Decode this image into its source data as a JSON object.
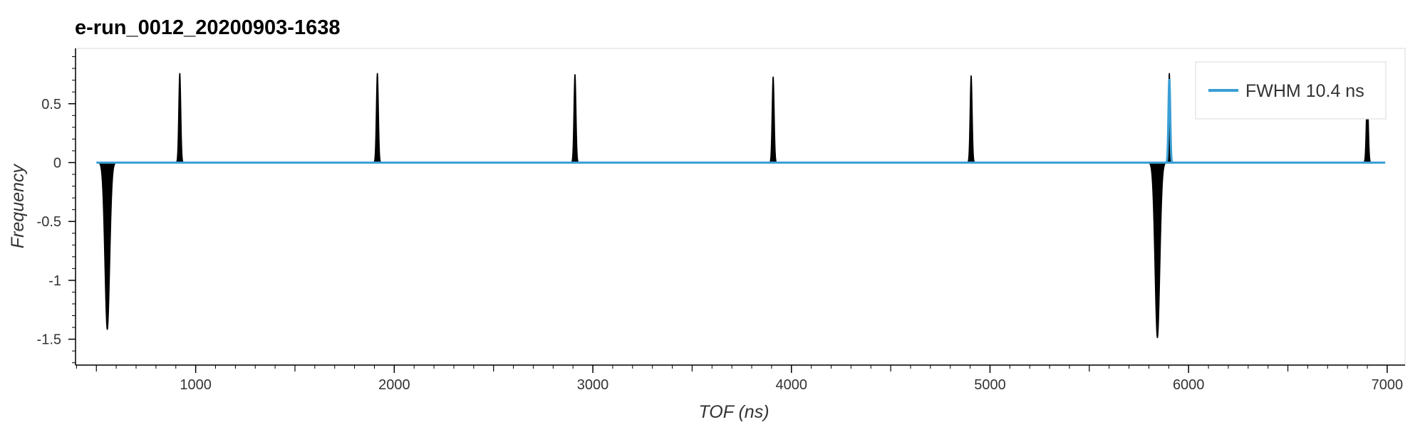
{
  "chart_data": {
    "type": "line",
    "title": "e-run_0012_20200903-1638",
    "xlabel": "TOF (ns)",
    "ylabel": "Frequency",
    "xlim": [
      395,
      7090
    ],
    "ylim": [
      -1.72,
      0.97
    ],
    "x_ticks": [
      {
        "value": 1000,
        "label": "1000"
      },
      {
        "value": 2000,
        "label": "2000"
      },
      {
        "value": 3000,
        "label": "3000"
      },
      {
        "value": 4000,
        "label": "4000"
      },
      {
        "value": 5000,
        "label": "5000"
      },
      {
        "value": 6000,
        "label": "6000"
      },
      {
        "value": 7000,
        "label": "7000"
      }
    ],
    "y_ticks": [
      {
        "value": 0.5,
        "label": "0.5"
      },
      {
        "value": 0,
        "label": "0"
      },
      {
        "value": -0.5,
        "label": "-0.5"
      },
      {
        "value": -1,
        "label": "-1"
      },
      {
        "value": -1.5,
        "label": "-1.5"
      }
    ],
    "grid": false,
    "legend_position": "top-right",
    "series": [
      {
        "kind": "signal",
        "color": "#000000",
        "x_range": [
          500,
          6990
        ],
        "peaks": [
          {
            "x": 555,
            "y": -1.42,
            "width": 12
          },
          {
            "x": 920,
            "y": 0.76,
            "width": 5
          },
          {
            "x": 1915,
            "y": 0.76,
            "width": 5
          },
          {
            "x": 2910,
            "y": 0.75,
            "width": 5
          },
          {
            "x": 3908,
            "y": 0.73,
            "width": 5
          },
          {
            "x": 4905,
            "y": 0.74,
            "width": 5
          },
          {
            "x": 5843,
            "y": -1.49,
            "width": 12
          },
          {
            "x": 5903,
            "y": 0.76,
            "width": 4
          },
          {
            "x": 6900,
            "y": 0.59,
            "width": 5
          }
        ]
      },
      {
        "kind": "fit",
        "name": "FWHM 10.4 ns",
        "color": "#3a9fd5",
        "x_range": [
          500,
          6990
        ],
        "peaks": [
          {
            "x": 5903,
            "y": 0.71,
            "width": 4.4
          }
        ]
      }
    ]
  }
}
